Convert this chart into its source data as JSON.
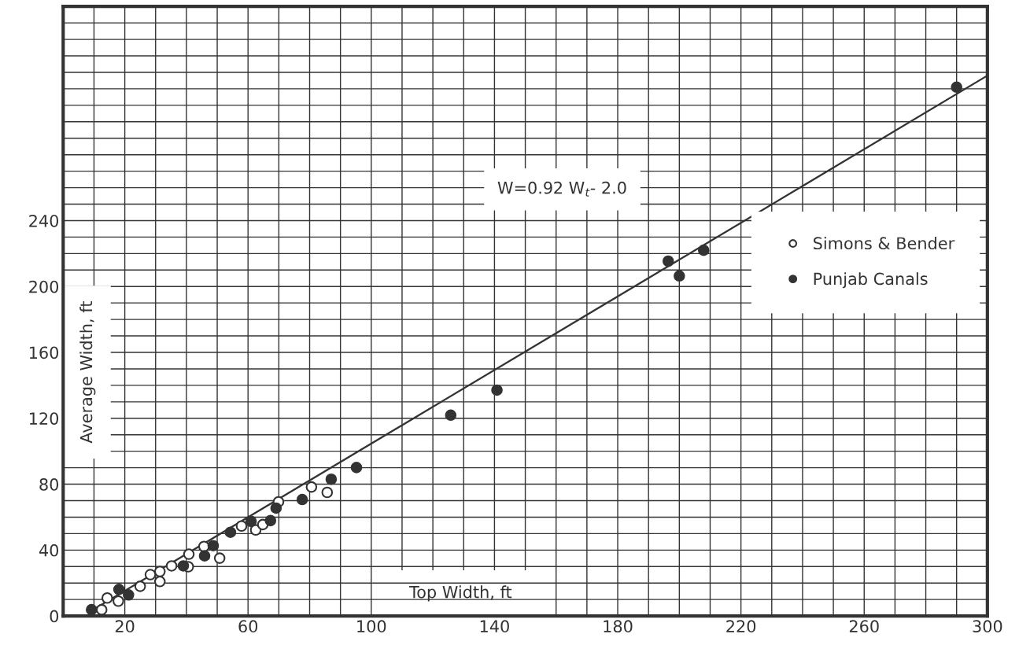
{
  "chart_data": {
    "type": "scatter",
    "xlabel": "Top Width, ft",
    "ylabel": "Average Width, ft",
    "annotations": [
      "W=0.92 W$_{t}$- 2.0"
    ],
    "xlim": [
      0,
      300
    ],
    "ylim": [
      0,
      370
    ],
    "xticks": [
      {
        "value": 10,
        "label": null
      },
      20,
      {
        "value": 30,
        "label": null
      },
      {
        "value": 40,
        "label": null
      },
      {
        "value": 50,
        "label": null
      },
      60,
      {
        "value": 70,
        "label": null
      },
      {
        "value": 80,
        "label": null
      },
      {
        "value": 90,
        "label": null
      },
      100,
      {
        "value": 110,
        "label": null
      },
      {
        "value": 120,
        "label": null
      },
      {
        "value": 130,
        "label": null
      },
      140,
      {
        "value": 150,
        "label": null
      },
      {
        "value": 160,
        "label": null
      },
      {
        "value": 170,
        "label": null
      },
      180,
      {
        "value": 190,
        "label": null
      },
      {
        "value": 200,
        "label": null
      },
      {
        "value": 210,
        "label": null
      },
      220,
      {
        "value": 230,
        "label": null
      },
      {
        "value": 240,
        "label": null
      },
      {
        "value": 250,
        "label": null
      },
      260,
      {
        "value": 270,
        "label": null
      },
      {
        "value": 280,
        "label": null
      },
      {
        "value": 290,
        "label": null
      },
      300
    ],
    "yticks": [
      0,
      {
        "value": 10,
        "label": null
      },
      {
        "value": 20,
        "label": null
      },
      {
        "value": 30,
        "label": null
      },
      40,
      {
        "value": 50,
        "label": null
      },
      {
        "value": 60,
        "label": null
      },
      {
        "value": 70,
        "label": null
      },
      80,
      {
        "value": 90,
        "label": null
      },
      {
        "value": 100,
        "label": null
      },
      {
        "value": 110,
        "label": null
      },
      120,
      {
        "value": 130,
        "label": null
      },
      {
        "value": 140,
        "label": null
      },
      {
        "value": 150,
        "label": null
      },
      160,
      {
        "value": 170,
        "label": null
      },
      {
        "value": 180,
        "label": null
      },
      {
        "value": 190,
        "label": null
      },
      200,
      {
        "value": 210,
        "label": null
      },
      {
        "value": 220,
        "label": null
      },
      {
        "value": 230,
        "label": null
      },
      240,
      {
        "value": 250,
        "label": null
      },
      {
        "value": 260,
        "label": null
      },
      {
        "value": 270,
        "label": null
      },
      {
        "value": 280,
        "label": null
      },
      {
        "value": 290,
        "label": null
      },
      {
        "value": 300,
        "label": null
      },
      {
        "value": 310,
        "label": null
      },
      {
        "value": 320,
        "label": null
      },
      {
        "value": 330,
        "label": null
      },
      {
        "value": 340,
        "label": null
      },
      {
        "value": 350,
        "label": null
      },
      {
        "value": 360,
        "label": null
      }
    ],
    "grid": true,
    "legend": "right",
    "marker": "circle",
    "series": [
      {
        "name": "Simons & Bender",
        "color": "#ffffff",
        "x": [
          12.5,
          14.3,
          17.9,
          25.0,
          28.3,
          31.4,
          31.4,
          35.2,
          40.6,
          40.8,
          45.7,
          50.8,
          57.9,
          62.5,
          64.8,
          69.9,
          80.6,
          85.7
        ],
        "values": [
          3.8,
          10.9,
          9.0,
          18.0,
          25.1,
          27.0,
          20.9,
          30.4,
          29.9,
          37.5,
          42.2,
          35.1,
          54.6,
          52.2,
          55.5,
          69.3,
          78.3,
          75.0
        ]
      },
      {
        "name": "Punjab Canals",
        "color": "#333333",
        "x": [
          9.2,
          18.1,
          21.2,
          39.0,
          45.9,
          48.7,
          54.3,
          61.0,
          67.3,
          69.1,
          77.6,
          87.0,
          95.2,
          125.8,
          140.8,
          196.4,
          200.0,
          207.9,
          290.0
        ],
        "values": [
          3.8,
          16.1,
          12.8,
          30.4,
          36.5,
          42.7,
          50.8,
          57.4,
          57.9,
          65.5,
          70.7,
          83.0,
          90.1,
          121.9,
          137.1,
          215.4,
          206.4,
          222.0,
          321.0
        ]
      },
      {
        "type": "line",
        "marker": "none",
        "color": "#333333",
        "x": [
          9,
          300
        ],
        "values": [
          3,
          328
        ]
      }
    ]
  }
}
